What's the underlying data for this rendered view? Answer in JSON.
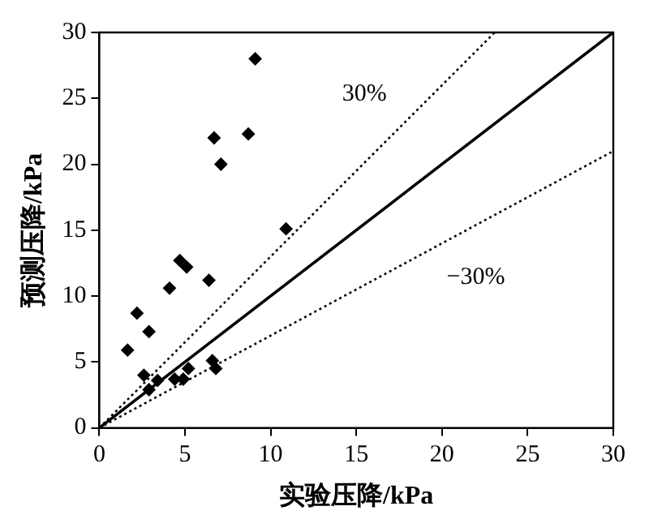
{
  "chart_data": {
    "type": "scatter",
    "xlabel": "实验压降/kPa",
    "ylabel": "预测压降/kPa",
    "xlim": [
      0,
      30
    ],
    "ylim": [
      0,
      30
    ],
    "xticks": [
      0,
      5,
      10,
      15,
      20,
      25,
      30
    ],
    "yticks": [
      0,
      5,
      10,
      15,
      20,
      25,
      30
    ],
    "grid": false,
    "legend": false,
    "marker": "diamond",
    "series": [
      {
        "type": "scatter",
        "color": "#000000",
        "x": [
          9.1,
          6.7,
          7.1,
          8.7,
          10.9,
          1.65,
          2.2,
          2.9,
          2.6,
          2.9,
          3.4,
          4.1,
          4.7,
          5.1,
          4.4,
          4.9,
          5.2,
          6.4,
          6.6,
          6.8
        ],
        "values": [
          28.0,
          22.0,
          20.0,
          22.3,
          15.1,
          5.9,
          8.7,
          7.3,
          4.0,
          2.9,
          3.6,
          10.6,
          12.7,
          12.2,
          3.7,
          3.7,
          4.5,
          11.2,
          5.1,
          4.5
        ]
      },
      {
        "type": "line",
        "color": "#000000",
        "line_style": "solid",
        "marker": "none",
        "x": [
          0,
          30
        ],
        "values": [
          0,
          30
        ]
      },
      {
        "type": "line",
        "name": "30%",
        "color": "#000000",
        "line_style": "dotted",
        "marker": "none",
        "x": [
          0,
          23.08
        ],
        "values": [
          0,
          30
        ]
      },
      {
        "type": "line",
        "name": "−30%",
        "color": "#000000",
        "line_style": "dotted",
        "marker": "none",
        "x": [
          0,
          30
        ],
        "values": [
          0,
          21
        ]
      }
    ]
  }
}
